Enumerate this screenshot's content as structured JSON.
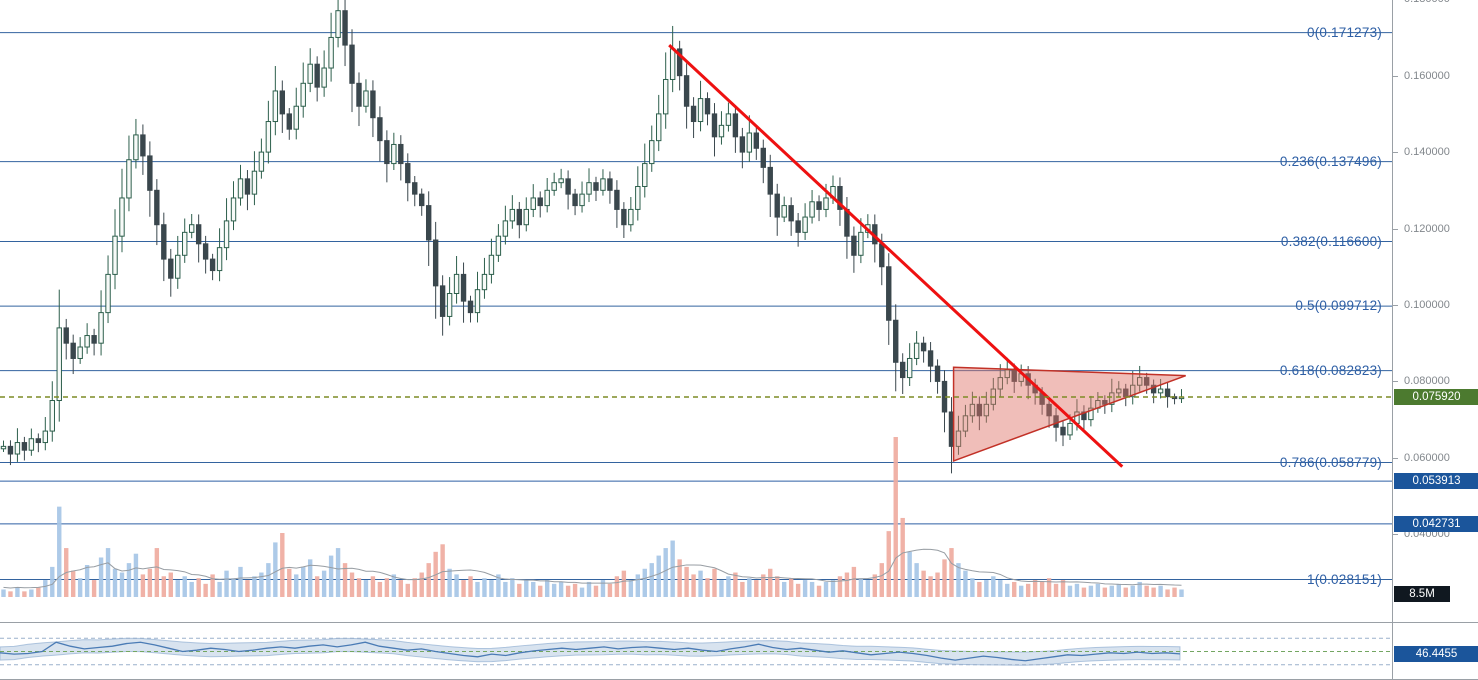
{
  "colors": {
    "fib_line": "#33639f",
    "fib_text": "#2e5fa5",
    "axis_text": "#82878c",
    "candle_up": "#2d5f4c",
    "candle_up_fill": "#f7faf8",
    "candle_down": "#3a474d",
    "volume_up": "#a6c6e6",
    "volume_down": "#efab9f",
    "volume_ma": "#979da3",
    "trendline": "#ee1111",
    "triangle_fill": "rgba(222,110,100,0.45)",
    "triangle_stroke": "#c23127",
    "current_line": "#7d8c25",
    "current_badge_bg": "#4c7a2f",
    "level_badge_bg": "#1b559b",
    "volume_badge_bg": "#101820",
    "rsi_line": "#4a7bb5",
    "rsi_band": "rgba(125,162,202,0.30)",
    "rsi_level": "#9ab0cc",
    "rsi_mid": "#74a662"
  },
  "chart_data": {
    "type": "candlestick",
    "price_axis": {
      "ticks": [
        "0.180000",
        "0.160000",
        "0.140000",
        "0.120000",
        "0.100000",
        "0.080000",
        "0.060000",
        "0.040000"
      ],
      "tick_values": [
        0.18,
        0.16,
        0.14,
        0.12,
        0.1,
        0.08,
        0.06,
        0.04
      ],
      "y_max": 0.1798,
      "y_min": 0.0228
    },
    "fib_levels": [
      {
        "label": "0(0.171273)",
        "price": 0.171273
      },
      {
        "label": "0.236(0.137496)",
        "price": 0.137496
      },
      {
        "label": "0.382(0.116600)",
        "price": 0.1166
      },
      {
        "label": "0.5(0.099712)",
        "price": 0.099712
      },
      {
        "label": "0.618(0.082823)",
        "price": 0.082823
      },
      {
        "label": "0.786(0.058779)",
        "price": 0.058779
      },
      {
        "label": "1(0.028151)",
        "price": 0.028151
      }
    ],
    "price_lines": [
      {
        "label": "0.075920",
        "price": 0.07592,
        "dashed": true,
        "type": "current",
        "line_color": "#7d8c25",
        "badge_color": "#4c7a2f"
      },
      {
        "label": "0.053913",
        "price": 0.053913,
        "dashed": false,
        "type": "level",
        "line_color": "#2e5fa5",
        "badge_color": "#1b559b"
      },
      {
        "label": "0.042731",
        "price": 0.042731,
        "dashed": false,
        "type": "level",
        "line_color": "#2e5fa5",
        "badge_color": "#1b559b"
      }
    ],
    "trendline": {
      "i1": 95.5,
      "p1": 0.168,
      "i2": 160.5,
      "p2": 0.0577
    },
    "triangle": {
      "points": [
        [
          136.3,
          0.0837
        ],
        [
          169.6,
          0.0815
        ],
        [
          136.3,
          0.0592
        ]
      ]
    },
    "candles": {
      "closes": [
        0.063,
        0.061,
        0.064,
        0.062,
        0.065,
        0.064,
        0.067,
        0.075,
        0.094,
        0.09,
        0.086,
        0.089,
        0.092,
        0.09,
        0.098,
        0.108,
        0.118,
        0.128,
        0.138,
        0.1445,
        0.139,
        0.13,
        0.121,
        0.112,
        0.107,
        0.113,
        0.119,
        0.121,
        0.116,
        0.112,
        0.109,
        0.115,
        0.122,
        0.128,
        0.133,
        0.129,
        0.135,
        0.14,
        0.148,
        0.156,
        0.15,
        0.146,
        0.152,
        0.158,
        0.163,
        0.157,
        0.162,
        0.17,
        0.177,
        0.168,
        0.158,
        0.152,
        0.156,
        0.149,
        0.143,
        0.137,
        0.142,
        0.137,
        0.132,
        0.129,
        0.126,
        0.117,
        0.105,
        0.097,
        0.103,
        0.108,
        0.101,
        0.098,
        0.104,
        0.108,
        0.113,
        0.118,
        0.122,
        0.125,
        0.121,
        0.125,
        0.128,
        0.126,
        0.13,
        0.132,
        0.133,
        0.129,
        0.126,
        0.129,
        0.132,
        0.13,
        0.133,
        0.13,
        0.125,
        0.121,
        0.125,
        0.131,
        0.137,
        0.143,
        0.15,
        0.159,
        0.167,
        0.16,
        0.152,
        0.148,
        0.154,
        0.15,
        0.144,
        0.147,
        0.15,
        0.144,
        0.14,
        0.145,
        0.141,
        0.136,
        0.129,
        0.123,
        0.126,
        0.122,
        0.119,
        0.123,
        0.127,
        0.125,
        0.128,
        0.131,
        0.125,
        0.118,
        0.113,
        0.119,
        0.121,
        0.116,
        0.11,
        0.096,
        0.085,
        0.081,
        0.086,
        0.09,
        0.088,
        0.084,
        0.08,
        0.072,
        0.063,
        0.067,
        0.071,
        0.074,
        0.071,
        0.074,
        0.078,
        0.081,
        0.083,
        0.08,
        0.082,
        0.079,
        0.077,
        0.074,
        0.071,
        0.068,
        0.066,
        0.069,
        0.072,
        0.07,
        0.073,
        0.075,
        0.074,
        0.077,
        0.078,
        0.076,
        0.079,
        0.081,
        0.079,
        0.077,
        0.078,
        0.076,
        0.0755,
        0.0759
      ]
    },
    "volume": {
      "axis_label": "8.5M",
      "max": 8.5,
      "values": [
        0.4,
        0.3,
        0.5,
        0.3,
        0.4,
        0.5,
        0.9,
        1.6,
        4.8,
        2.6,
        1.4,
        1.0,
        1.7,
        0.9,
        2.1,
        2.6,
        1.5,
        1.3,
        1.8,
        2.3,
        1.2,
        1.5,
        2.6,
        1.1,
        1.3,
        0.9,
        1.1,
        0.8,
        1.0,
        0.7,
        1.2,
        0.8,
        1.4,
        1.0,
        1.6,
        0.9,
        1.1,
        1.3,
        1.8,
        2.9,
        3.4,
        1.5,
        1.2,
        1.6,
        2.0,
        1.1,
        1.4,
        2.2,
        2.6,
        1.8,
        1.3,
        1.0,
        0.9,
        1.1,
        0.8,
        1.0,
        1.2,
        0.9,
        0.7,
        1.0,
        1.3,
        1.8,
        2.4,
        2.8,
        1.5,
        1.2,
        0.9,
        1.1,
        0.8,
        1.0,
        0.9,
        1.2,
        0.8,
        1.0,
        0.7,
        0.9,
        0.8,
        0.6,
        0.9,
        0.7,
        0.8,
        0.6,
        0.7,
        0.5,
        0.8,
        0.6,
        0.9,
        0.7,
        1.1,
        1.4,
        0.9,
        1.2,
        1.5,
        1.8,
        2.2,
        2.6,
        3.0,
        2.0,
        1.6,
        1.2,
        1.4,
        1.0,
        1.5,
        0.9,
        1.1,
        1.3,
        0.8,
        1.0,
        0.9,
        1.2,
        1.5,
        1.1,
        0.8,
        1.0,
        0.7,
        0.9,
        0.8,
        0.6,
        0.8,
        0.9,
        1.1,
        1.3,
        1.6,
        1.0,
        0.9,
        1.2,
        1.8,
        3.5,
        8.5,
        4.2,
        2.4,
        1.8,
        1.4,
        1.1,
        1.3,
        2.0,
        2.6,
        1.8,
        1.4,
        1.0,
        0.8,
        0.9,
        1.1,
        0.9,
        0.7,
        0.8,
        0.6,
        0.7,
        0.9,
        0.8,
        1.0,
        0.7,
        0.9,
        0.6,
        0.7,
        0.5,
        0.6,
        0.7,
        0.5,
        0.6,
        0.7,
        0.5,
        0.6,
        0.8,
        0.6,
        0.5,
        0.6,
        0.4,
        0.5,
        0.4
      ]
    },
    "rsi": {
      "label": "46.4455",
      "value": 46.4455,
      "range": [
        10,
        90
      ],
      "levels": [
        70,
        30
      ],
      "mid": 50,
      "band_width": 10,
      "values": [
        48,
        46,
        47,
        50,
        64,
        58,
        54,
        56,
        58,
        62,
        64,
        60,
        55,
        50,
        52,
        55,
        53,
        50,
        52,
        55,
        57,
        55,
        58,
        60,
        57,
        60,
        64,
        58,
        55,
        52,
        54,
        50,
        47,
        44,
        42,
        46,
        44,
        48,
        51,
        53,
        55,
        53,
        55,
        57,
        54,
        56,
        57,
        55,
        53,
        55,
        52,
        50,
        54,
        57,
        61,
        56,
        53,
        55,
        52,
        49,
        51,
        48,
        45,
        47,
        49,
        47,
        44,
        40,
        37,
        40,
        43,
        41,
        38,
        36,
        39,
        42,
        45,
        44,
        46,
        48,
        47,
        49,
        47,
        48,
        46.4
      ]
    }
  }
}
